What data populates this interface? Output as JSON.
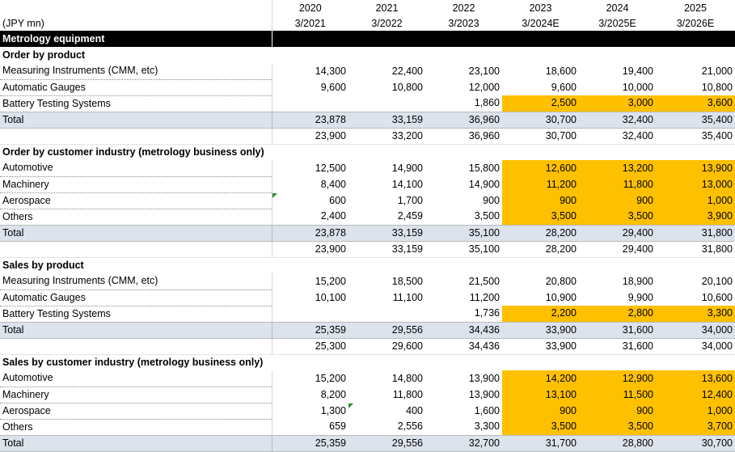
{
  "header": {
    "unit_label": "(JPY mn)",
    "years": [
      "2020",
      "2021",
      "2022",
      "2023",
      "2024",
      "2025"
    ],
    "periods": [
      "3/2021",
      "3/2022",
      "3/2023",
      "3/2024E",
      "3/2025E",
      "3/2026E"
    ]
  },
  "band": {
    "label": "Metrology equipment"
  },
  "rows": [
    {
      "type": "section",
      "label": "Order by product",
      "values": [
        "",
        "",
        "",
        "",
        "",
        ""
      ]
    },
    {
      "type": "data",
      "label": "Measuring Instruments (CMM, etc)",
      "values": [
        "14,300",
        "22,400",
        "23,100",
        "18,600",
        "19,400",
        "21,000"
      ],
      "highlight": []
    },
    {
      "type": "data",
      "label": "Automatic Gauges",
      "values": [
        "9,600",
        "10,800",
        "12,000",
        "9,600",
        "10,000",
        "10,800"
      ],
      "highlight": []
    },
    {
      "type": "data",
      "label": "Battery Testing Systems",
      "values": [
        "",
        "",
        "1,860",
        "2,500",
        "3,000",
        "3,600"
      ],
      "highlight": [
        3,
        4,
        5
      ]
    },
    {
      "type": "total",
      "label": "Total",
      "values": [
        "23,878",
        "33,159",
        "36,960",
        "30,700",
        "32,400",
        "35,400"
      ],
      "highlight": []
    },
    {
      "type": "sub",
      "label": "",
      "values": [
        "23,900",
        "33,200",
        "36,960",
        "30,700",
        "32,400",
        "35,400"
      ],
      "highlight": []
    },
    {
      "type": "section",
      "label": "Order by customer industry (metrology business only)",
      "values": [
        "",
        "",
        "",
        "",
        "",
        ""
      ]
    },
    {
      "type": "data",
      "label": "Automotive",
      "values": [
        "12,500",
        "14,900",
        "15,800",
        "12,600",
        "13,200",
        "13,900"
      ],
      "highlight": [
        3,
        4,
        5
      ]
    },
    {
      "type": "data",
      "label": "Machinery",
      "values": [
        "8,400",
        "14,100",
        "14,900",
        "11,200",
        "11,800",
        "13,000"
      ],
      "highlight": [
        3,
        4,
        5
      ]
    },
    {
      "type": "data",
      "label": "Aerospace",
      "values": [
        "600",
        "1,700",
        "900",
        "900",
        "900",
        "1,000"
      ],
      "highlight": [
        3,
        4,
        5
      ],
      "flag": 0
    },
    {
      "type": "data",
      "label": "Others",
      "values": [
        "2,400",
        "2,459",
        "3,500",
        "3,500",
        "3,500",
        "3,900"
      ],
      "highlight": [
        3,
        4,
        5
      ]
    },
    {
      "type": "total",
      "label": "Total",
      "values": [
        "23,878",
        "33,159",
        "35,100",
        "28,200",
        "29,400",
        "31,800"
      ],
      "highlight": []
    },
    {
      "type": "sub",
      "label": "",
      "values": [
        "23,900",
        "33,159",
        "35,100",
        "28,200",
        "29,400",
        "31,800"
      ],
      "highlight": []
    },
    {
      "type": "section",
      "label": "Sales by product",
      "values": [
        "",
        "",
        "",
        "",
        "",
        ""
      ]
    },
    {
      "type": "data",
      "label": "Measuring Instruments (CMM, etc)",
      "values": [
        "15,200",
        "18,500",
        "21,500",
        "20,800",
        "18,900",
        "20,100"
      ],
      "highlight": []
    },
    {
      "type": "data",
      "label": "Automatic Gauges",
      "values": [
        "10,100",
        "11,100",
        "11,200",
        "10,900",
        "9,900",
        "10,600"
      ],
      "highlight": []
    },
    {
      "type": "data",
      "label": "Battery Testing Systems",
      "values": [
        "",
        "",
        "1,736",
        "2,200",
        "2,800",
        "3,300"
      ],
      "highlight": [
        3,
        4,
        5
      ]
    },
    {
      "type": "total",
      "label": "Total",
      "values": [
        "25,359",
        "29,556",
        "34,436",
        "33,900",
        "31,600",
        "34,000"
      ],
      "highlight": []
    },
    {
      "type": "sub",
      "label": "",
      "values": [
        "25,300",
        "29,600",
        "34,436",
        "33,900",
        "31,600",
        "34,000"
      ],
      "highlight": []
    },
    {
      "type": "section",
      "label": "Sales by customer industry (metrology business only)",
      "values": [
        "",
        "",
        "",
        "",
        "",
        ""
      ]
    },
    {
      "type": "data",
      "label": "Automotive",
      "values": [
        "15,200",
        "14,800",
        "13,900",
        "14,200",
        "12,900",
        "13,600"
      ],
      "highlight": [
        3,
        4,
        5
      ]
    },
    {
      "type": "data",
      "label": "Machinery",
      "values": [
        "8,200",
        "11,800",
        "13,900",
        "13,100",
        "11,500",
        "12,400"
      ],
      "highlight": [
        3,
        4,
        5
      ]
    },
    {
      "type": "data",
      "label": "Aerospace",
      "values": [
        "1,300",
        "400",
        "1,600",
        "900",
        "900",
        "1,000"
      ],
      "highlight": [
        3,
        4,
        5
      ],
      "flag": 1
    },
    {
      "type": "data",
      "label": "Others",
      "values": [
        "659",
        "2,556",
        "3,300",
        "3,500",
        "3,500",
        "3,700"
      ],
      "highlight": [
        3,
        4,
        5
      ]
    },
    {
      "type": "total",
      "label": "Total",
      "values": [
        "25,359",
        "29,556",
        "32,700",
        "31,700",
        "28,800",
        "30,700"
      ],
      "highlight": []
    }
  ],
  "colors": {
    "highlight": "#ffc000",
    "total_row": "#dde3ec",
    "band": "#000000",
    "flag": "#2e8b2e"
  }
}
